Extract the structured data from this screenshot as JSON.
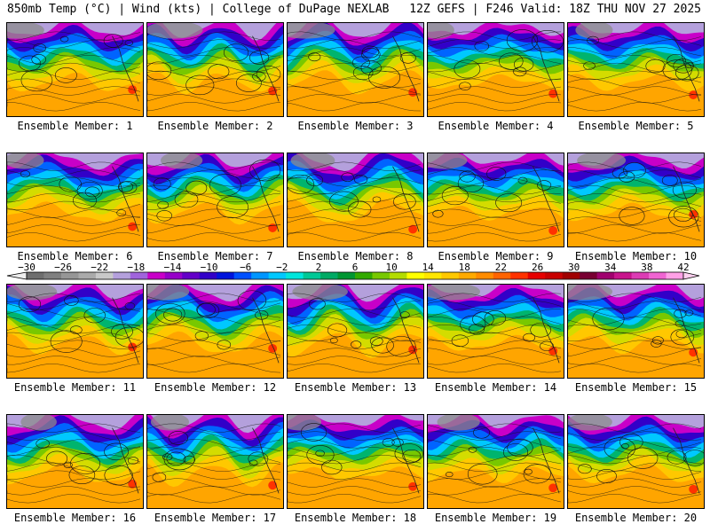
{
  "header": {
    "left": "850mb Temp (°C) | Wind (kts) | College of DuPage NEXLAB",
    "right": "12Z GEFS | F246 Valid: 18Z THU NOV 27 2025"
  },
  "panel_label_prefix": "Ensemble Member:",
  "members": [
    {
      "label": "Ensemble Member: 1",
      "number": 1
    },
    {
      "label": "Ensemble Member: 2",
      "number": 2
    },
    {
      "label": "Ensemble Member: 3",
      "number": 3
    },
    {
      "label": "Ensemble Member: 4",
      "number": 4
    },
    {
      "label": "Ensemble Member: 5",
      "number": 5
    },
    {
      "label": "Ensemble Member: 6",
      "number": 6
    },
    {
      "label": "Ensemble Member: 7",
      "number": 7
    },
    {
      "label": "Ensemble Member: 8",
      "number": 8
    },
    {
      "label": "Ensemble Member: 9",
      "number": 9
    },
    {
      "label": "Ensemble Member: 10",
      "number": 10
    },
    {
      "label": "Ensemble Member: 11",
      "number": 11
    },
    {
      "label": "Ensemble Member: 12",
      "number": 12
    },
    {
      "label": "Ensemble Member: 13",
      "number": 13
    },
    {
      "label": "Ensemble Member: 14",
      "number": 14
    },
    {
      "label": "Ensemble Member: 15",
      "number": 15
    },
    {
      "label": "Ensemble Member: 16",
      "number": 16
    },
    {
      "label": "Ensemble Member: 17",
      "number": 17
    },
    {
      "label": "Ensemble Member: 18",
      "number": 18
    },
    {
      "label": "Ensemble Member: 19",
      "number": 19
    },
    {
      "label": "Ensemble Member: 20",
      "number": 20
    }
  ],
  "colorbar": {
    "unit": "°C",
    "min": -30,
    "max": 42,
    "step": 2,
    "tick_labels": [
      "-30",
      "-26",
      "-22",
      "-18",
      "-14",
      "-10",
      "-6",
      "-2",
      "2",
      "6",
      "10",
      "14",
      "18",
      "22",
      "26",
      "30",
      "34",
      "38",
      "42"
    ],
    "colors": [
      "#6e6e6e",
      "#808080",
      "#969696",
      "#aaaaaa",
      "#c8c8c8",
      "#b4a0dc",
      "#a064dc",
      "#c800c8",
      "#9600c8",
      "#6400c8",
      "#3200c8",
      "#0014dc",
      "#0050ff",
      "#0096ff",
      "#00c8ff",
      "#00e6dc",
      "#00c896",
      "#00aa64",
      "#009632",
      "#32aa00",
      "#78c800",
      "#b4dc00",
      "#ffff00",
      "#ffe600",
      "#ffc800",
      "#ffaa00",
      "#ff8c00",
      "#ff6400",
      "#ff3200",
      "#e60000",
      "#c80000",
      "#a00000",
      "#780032",
      "#a0006e",
      "#c8148c",
      "#dc3cb4",
      "#f064d2",
      "#ffa0e6"
    ]
  }
}
